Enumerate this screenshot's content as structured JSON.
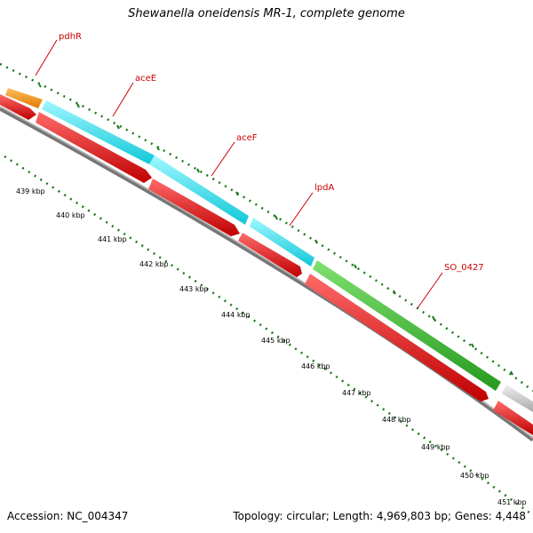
{
  "title": "Shewanella oneidensis MR-1, complete genome",
  "footer": {
    "accession": "Accession: NC_004347",
    "topology": "Topology: circular; Length: 4,969,803 bp; Genes: 4,448"
  },
  "genes": [
    {
      "name": "pdhR",
      "color": "#f7941d"
    },
    {
      "name": "aceE",
      "color": "#2de8f0"
    },
    {
      "name": "aceF",
      "color": "#2de8f0"
    },
    {
      "name": "lpdA",
      "color": "#2de8f0"
    },
    {
      "name": "SO_0427",
      "color": "#3dbb33"
    },
    {
      "name": "",
      "color": "#c8c8c8"
    }
  ],
  "tick_labels": [
    "439 kbp",
    "440 kbp",
    "441 kbp",
    "442 kbp",
    "443 kbp",
    "444 kbp",
    "445 kbp",
    "446 kbp",
    "447 kbp",
    "448 kbp",
    "449 kbp",
    "450 kbp",
    "451 kbp"
  ],
  "colors": {
    "cds": "#ff0000",
    "backbone": "#777777",
    "ticks": "#1a7a1a",
    "labels": "#cc0000"
  }
}
